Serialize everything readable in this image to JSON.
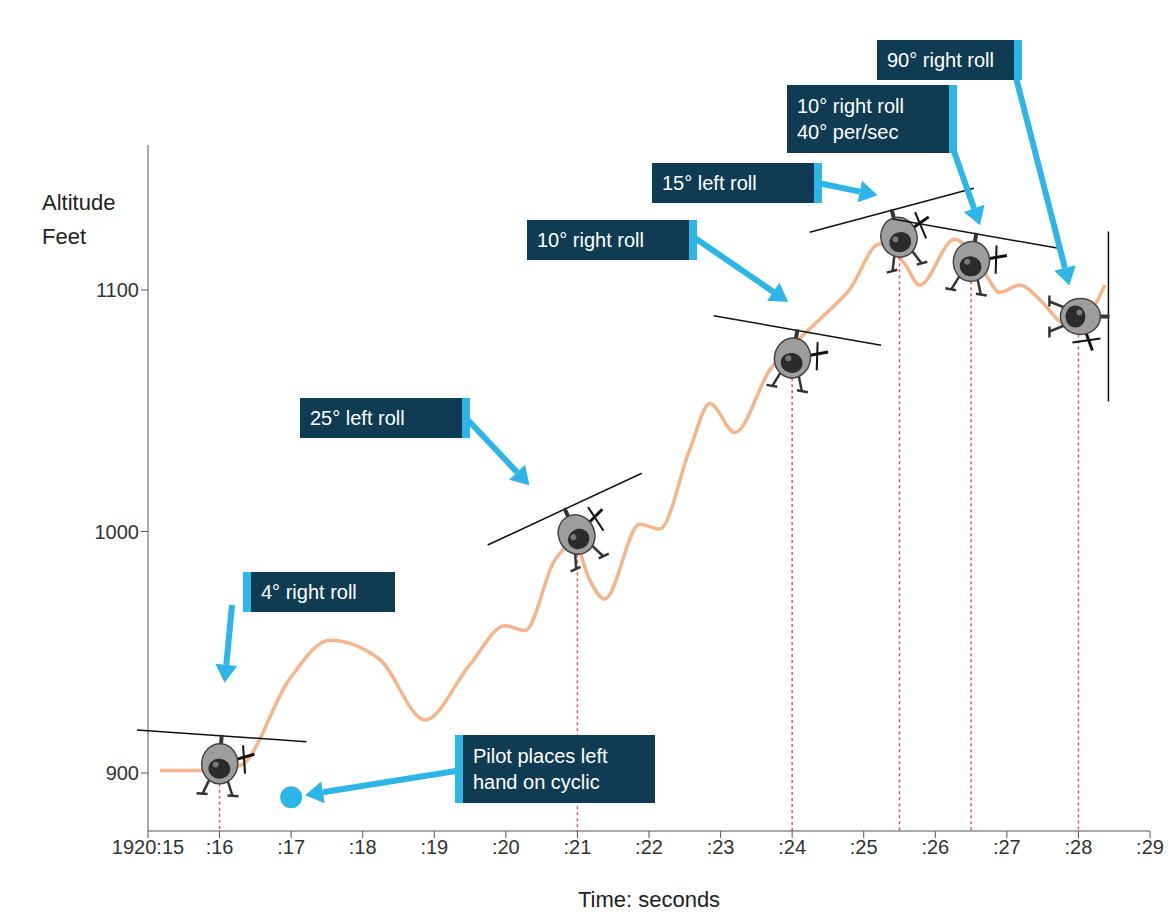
{
  "chart_data": {
    "type": "line",
    "x_label": "Time: seconds",
    "y_label": "Altitude Feet",
    "xlim": [
      15,
      29
    ],
    "xticks": [
      {
        "value": 15,
        "label": "1920:15"
      },
      {
        "value": 16,
        "label": ":16"
      },
      {
        "value": 17,
        "label": ":17"
      },
      {
        "value": 18,
        "label": ":18"
      },
      {
        "value": 19,
        "label": ":19"
      },
      {
        "value": 20,
        "label": ":20"
      },
      {
        "value": 21,
        "label": ":21"
      },
      {
        "value": 22,
        "label": ":22"
      },
      {
        "value": 23,
        "label": ":23"
      },
      {
        "value": 24,
        "label": ":24"
      },
      {
        "value": 25,
        "label": ":25"
      },
      {
        "value": 26,
        "label": ":26"
      },
      {
        "value": 27,
        "label": ":27"
      },
      {
        "value": 28,
        "label": ":28"
      },
      {
        "value": 29,
        "label": ":29"
      }
    ],
    "ylim": [
      876,
      1160
    ],
    "yticks": [
      900,
      1000,
      1100
    ],
    "grid": false,
    "color": "#f5b48a",
    "x": [
      15.17,
      15.73,
      16.28,
      16.98,
      17.54,
      18.24,
      18.87,
      19.5,
      19.99,
      20.27,
      20.68,
      20.96,
      21.17,
      21.38,
      21.87,
      22.15,
      22.57,
      22.85,
      23.2,
      23.69,
      24.11,
      24.39,
      24.8,
      25.22,
      25.57,
      25.78,
      26.27,
      26.69,
      26.9,
      27.18,
      27.46,
      27.74,
      27.95,
      28.16,
      28.37
    ],
    "values": [
      901,
      901,
      903,
      939,
      955,
      947,
      922,
      945,
      961,
      959,
      988,
      995,
      980,
      972,
      1003,
      1001,
      1034,
      1053,
      1041,
      1067,
      1080,
      1088,
      1100,
      1119,
      1111,
      1102,
      1121,
      1107,
      1099,
      1102,
      1096,
      1087,
      1084,
      1090,
      1102
    ],
    "annotations": [
      {
        "text": "4° right roll",
        "x": 16,
        "y": 903,
        "roll": 4
      },
      {
        "text": "25° left roll",
        "x": 21,
        "y": 998,
        "roll": -25
      },
      {
        "text": "10° right roll",
        "x": 24,
        "y": 1071,
        "roll": 10
      },
      {
        "text": "15° left roll",
        "x": 25.5,
        "y": 1121,
        "roll": -15
      },
      {
        "text": "10° right roll 40° per/sec",
        "x": 26.5,
        "y": 1111,
        "roll": 10
      },
      {
        "text": "90° right roll",
        "x": 28,
        "y": 1089,
        "roll": 90
      },
      {
        "text": "Pilot places left hand on cyclic",
        "x": 17,
        "y": 890
      }
    ]
  }
}
